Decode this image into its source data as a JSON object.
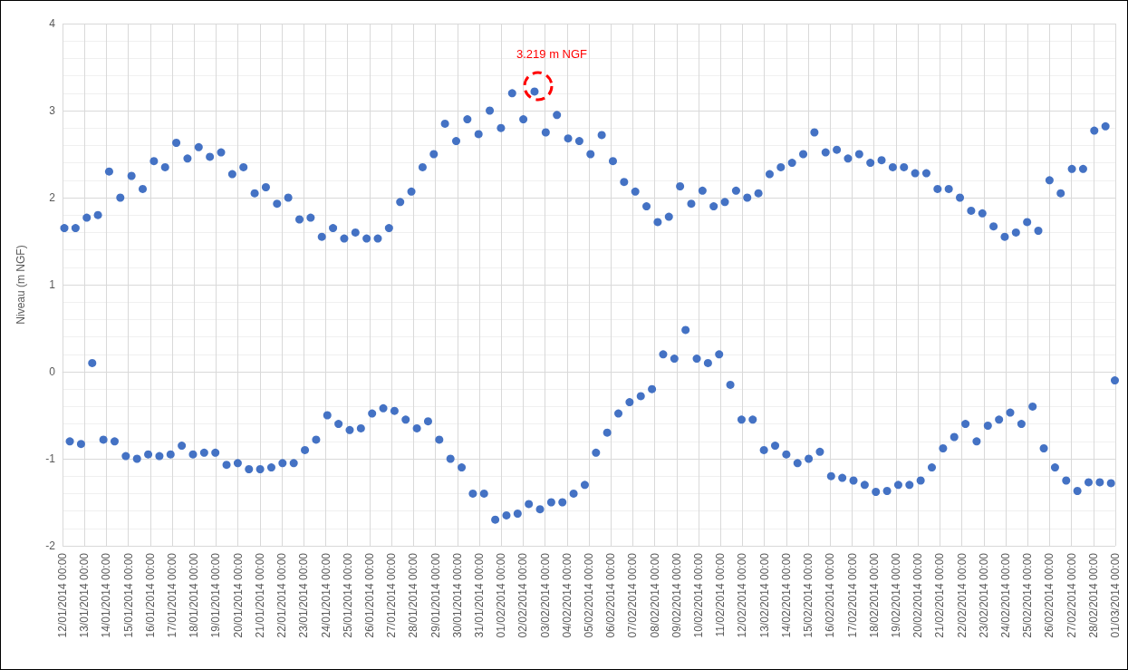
{
  "chart_data": {
    "type": "scatter",
    "ylabel": "Niveau (m NGF)",
    "annotations": [
      {
        "text": "3.219 m NGF",
        "x": "2014-02-02T12:30",
        "y": 3.219
      }
    ],
    "xlim": [
      "2014-01-12",
      "2014-03-01"
    ],
    "xticks": [
      {
        "value": "2014-01-12",
        "label": "12/01/2014 00:00"
      },
      {
        "value": "2014-01-13",
        "label": "13/01/2014 00:00"
      },
      {
        "value": "2014-01-14",
        "label": "14/01/2014 00:00"
      },
      {
        "value": "2014-01-15",
        "label": "15/01/2014 00:00"
      },
      {
        "value": "2014-01-16",
        "label": "16/01/2014 00:00"
      },
      {
        "value": "2014-01-17",
        "label": "17/01/2014 00:00"
      },
      {
        "value": "2014-01-18",
        "label": "18/01/2014 00:00"
      },
      {
        "value": "2014-01-19",
        "label": "19/01/2014 00:00"
      },
      {
        "value": "2014-01-20",
        "label": "20/01/2014 00:00"
      },
      {
        "value": "2014-01-21",
        "label": "21/01/2014 00:00"
      },
      {
        "value": "2014-01-22",
        "label": "22/01/2014 00:00"
      },
      {
        "value": "2014-01-23",
        "label": "23/01/2014 00:00"
      },
      {
        "value": "2014-01-24",
        "label": "24/01/2014 00:00"
      },
      {
        "value": "2014-01-25",
        "label": "25/01/2014 00:00"
      },
      {
        "value": "2014-01-26",
        "label": "26/01/2014 00:00"
      },
      {
        "value": "2014-01-27",
        "label": "27/01/2014 00:00"
      },
      {
        "value": "2014-01-28",
        "label": "28/01/2014 00:00"
      },
      {
        "value": "2014-01-29",
        "label": "29/01/2014 00:00"
      },
      {
        "value": "2014-01-30",
        "label": "30/01/2014 00:00"
      },
      {
        "value": "2014-01-31",
        "label": "31/01/2014 00:00"
      },
      {
        "value": "2014-02-01",
        "label": "01/02/2014 00:00"
      },
      {
        "value": "2014-02-02",
        "label": "02/02/2014 00:00"
      },
      {
        "value": "2014-02-03",
        "label": "03/02/2014 00:00"
      },
      {
        "value": "2014-02-04",
        "label": "04/02/2014 00:00"
      },
      {
        "value": "2014-02-05",
        "label": "05/02/2014 00:00"
      },
      {
        "value": "2014-02-06",
        "label": "06/02/2014 00:00"
      },
      {
        "value": "2014-02-07",
        "label": "07/02/2014 00:00"
      },
      {
        "value": "2014-02-08",
        "label": "08/02/2014 00:00"
      },
      {
        "value": "2014-02-09",
        "label": "09/02/2014 00:00"
      },
      {
        "value": "2014-02-10",
        "label": "10/02/2014 00:00"
      },
      {
        "value": "2014-02-11",
        "label": "11/02/2014 00:00"
      },
      {
        "value": "2014-02-12",
        "label": "12/02/2014 00:00"
      },
      {
        "value": "2014-02-13",
        "label": "13/02/2014 00:00"
      },
      {
        "value": "2014-02-14",
        "label": "14/02/2014 00:00"
      },
      {
        "value": "2014-02-15",
        "label": "15/02/2014 00:00"
      },
      {
        "value": "2014-02-16",
        "label": "16/02/2014 00:00"
      },
      {
        "value": "2014-02-17",
        "label": "17/02/2014 00:00"
      },
      {
        "value": "2014-02-18",
        "label": "18/02/2014 00:00"
      },
      {
        "value": "2014-02-19",
        "label": "19/02/2014 00:00"
      },
      {
        "value": "2014-02-20",
        "label": "20/02/2014 00:00"
      },
      {
        "value": "2014-02-21",
        "label": "21/02/2014 00:00"
      },
      {
        "value": "2014-02-22",
        "label": "22/02/2014 00:00"
      },
      {
        "value": "2014-02-23",
        "label": "23/02/2014 00:00"
      },
      {
        "value": "2014-02-24",
        "label": "24/02/2014 00:00"
      },
      {
        "value": "2014-02-25",
        "label": "25/02/2014 00:00"
      },
      {
        "value": "2014-02-26",
        "label": "26/02/2014 00:00"
      },
      {
        "value": "2014-02-27",
        "label": "27/02/2014 00:00"
      },
      {
        "value": "2014-02-28",
        "label": "28/02/2014 00:00"
      },
      {
        "value": "2014-03-01",
        "label": "01/03/2014 00:00"
      }
    ],
    "ylim": [
      -2,
      4
    ],
    "yticks": [
      -2,
      -1,
      0,
      1,
      2,
      3,
      4
    ],
    "grid": true,
    "marker": "circle",
    "series": [
      {
        "color": "#4472c4",
        "x": [
          "2014-01-12T02:00",
          "2014-01-12T08:00",
          "2014-01-12T14:15",
          "2014-01-12T20:15",
          "2014-01-13T02:30",
          "2014-01-13T08:30",
          "2014-01-13T14:45",
          "2014-01-13T20:45",
          "2014-01-14T03:00",
          "2014-01-14T09:00",
          "2014-01-14T15:15",
          "2014-01-14T21:15",
          "2014-01-15T03:30",
          "2014-01-15T09:30",
          "2014-01-15T15:45",
          "2014-01-15T21:45",
          "2014-01-16T04:00",
          "2014-01-16T10:00",
          "2014-01-16T16:15",
          "2014-01-16T22:15",
          "2014-01-17T04:30",
          "2014-01-17T10:30",
          "2014-01-17T16:45",
          "2014-01-17T22:45",
          "2014-01-18T05:00",
          "2014-01-18T11:00",
          "2014-01-18T17:15",
          "2014-01-18T23:15",
          "2014-01-19T05:30",
          "2014-01-19T11:30",
          "2014-01-19T17:45",
          "2014-01-19T23:45",
          "2014-01-20T06:00",
          "2014-01-20T12:00",
          "2014-01-20T18:15",
          "2014-01-21T00:15",
          "2014-01-21T06:30",
          "2014-01-21T12:30",
          "2014-01-21T18:45",
          "2014-01-22T00:45",
          "2014-01-22T07:00",
          "2014-01-22T13:00",
          "2014-01-22T19:15",
          "2014-01-23T01:15",
          "2014-01-23T07:30",
          "2014-01-23T13:30",
          "2014-01-23T19:45",
          "2014-01-24T01:45",
          "2014-01-24T08:00",
          "2014-01-24T14:00",
          "2014-01-24T20:15",
          "2014-01-25T02:15",
          "2014-01-25T08:30",
          "2014-01-25T14:30",
          "2014-01-25T20:45",
          "2014-01-26T02:45",
          "2014-01-26T09:00",
          "2014-01-26T15:00",
          "2014-01-26T21:15",
          "2014-01-27T03:15",
          "2014-01-27T09:30",
          "2014-01-27T15:30",
          "2014-01-27T21:45",
          "2014-01-28T03:45",
          "2014-01-28T10:00",
          "2014-01-28T16:00",
          "2014-01-28T22:15",
          "2014-01-29T04:15",
          "2014-01-29T10:30",
          "2014-01-29T16:30",
          "2014-01-29T22:45",
          "2014-01-30T04:45",
          "2014-01-30T11:00",
          "2014-01-30T17:00",
          "2014-01-30T23:15",
          "2014-01-31T05:15",
          "2014-01-31T11:30",
          "2014-01-31T17:30",
          "2014-01-31T23:45",
          "2014-02-01T05:45",
          "2014-02-01T12:00",
          "2014-02-01T18:00",
          "2014-02-02T00:15",
          "2014-02-02T06:15",
          "2014-02-02T12:30",
          "2014-02-02T18:30",
          "2014-02-03T00:45",
          "2014-02-03T06:45",
          "2014-02-03T13:00",
          "2014-02-03T19:00",
          "2014-02-04T01:15",
          "2014-02-04T07:15",
          "2014-02-04T13:30",
          "2014-02-04T19:30",
          "2014-02-05T01:45",
          "2014-02-05T07:45",
          "2014-02-05T14:00",
          "2014-02-05T20:00",
          "2014-02-06T02:15",
          "2014-02-06T08:15",
          "2014-02-06T14:30",
          "2014-02-06T20:30",
          "2014-02-07T02:45",
          "2014-02-07T08:45",
          "2014-02-07T15:00",
          "2014-02-07T21:00",
          "2014-02-08T03:15",
          "2014-02-08T09:15",
          "2014-02-08T15:30",
          "2014-02-08T21:30",
          "2014-02-09T03:45",
          "2014-02-09T09:45",
          "2014-02-09T16:00",
          "2014-02-09T22:00",
          "2014-02-10T04:15",
          "2014-02-10T10:15",
          "2014-02-10T16:30",
          "2014-02-10T22:30",
          "2014-02-11T04:45",
          "2014-02-11T10:45",
          "2014-02-11T17:00",
          "2014-02-11T23:00",
          "2014-02-12T05:15",
          "2014-02-12T11:15",
          "2014-02-12T17:30",
          "2014-02-12T23:30",
          "2014-02-13T05:45",
          "2014-02-13T11:45",
          "2014-02-13T18:00",
          "2014-02-14T00:00",
          "2014-02-14T06:15",
          "2014-02-14T12:15",
          "2014-02-14T18:30",
          "2014-02-15T00:30",
          "2014-02-15T06:45",
          "2014-02-15T12:45",
          "2014-02-15T19:00",
          "2014-02-16T01:00",
          "2014-02-16T07:15",
          "2014-02-16T13:15",
          "2014-02-16T19:30",
          "2014-02-17T01:30",
          "2014-02-17T07:45",
          "2014-02-17T13:45",
          "2014-02-17T20:00",
          "2014-02-18T02:00",
          "2014-02-18T08:15",
          "2014-02-18T14:15",
          "2014-02-18T20:30",
          "2014-02-19T02:30",
          "2014-02-19T08:45",
          "2014-02-19T14:45",
          "2014-02-19T21:00",
          "2014-02-20T03:00",
          "2014-02-20T09:15",
          "2014-02-20T15:15",
          "2014-02-20T21:30",
          "2014-02-21T03:30",
          "2014-02-21T09:45",
          "2014-02-21T15:45",
          "2014-02-21T22:00",
          "2014-02-22T04:00",
          "2014-02-22T10:15",
          "2014-02-22T16:15",
          "2014-02-22T22:30",
          "2014-02-23T04:30",
          "2014-02-23T10:45",
          "2014-02-23T16:45",
          "2014-02-23T23:00",
          "2014-02-24T05:00",
          "2014-02-24T11:15",
          "2014-02-24T17:15",
          "2014-02-24T23:30",
          "2014-02-25T05:30",
          "2014-02-25T11:45",
          "2014-02-25T17:45",
          "2014-02-26T00:00",
          "2014-02-26T06:00",
          "2014-02-26T12:15",
          "2014-02-26T18:15",
          "2014-02-27T00:30",
          "2014-02-27T06:30",
          "2014-02-27T12:45",
          "2014-02-27T18:45",
          "2014-02-28T01:00",
          "2014-02-28T07:00",
          "2014-02-28T13:15",
          "2014-02-28T19:15",
          "2014-02-28T23:30"
        ],
        "values": [
          1.65,
          -0.8,
          1.65,
          -0.83,
          1.77,
          0.1,
          1.8,
          -0.78,
          2.3,
          -0.8,
          2.0,
          -0.97,
          2.25,
          -1.0,
          2.1,
          -0.95,
          2.42,
          -0.97,
          2.35,
          -0.95,
          2.63,
          -0.85,
          2.45,
          -0.95,
          2.58,
          -0.93,
          2.47,
          -0.93,
          2.52,
          -1.07,
          2.27,
          -1.05,
          2.35,
          -1.12,
          2.05,
          -1.12,
          2.12,
          -1.1,
          1.93,
          -1.05,
          2.0,
          -1.05,
          1.75,
          -0.9,
          1.77,
          -0.78,
          1.55,
          -0.5,
          1.65,
          -0.6,
          1.53,
          -0.67,
          1.6,
          -0.65,
          1.53,
          -0.48,
          1.53,
          -0.42,
          1.65,
          -0.45,
          1.95,
          -0.55,
          2.07,
          -0.65,
          2.35,
          -0.57,
          2.5,
          -0.78,
          2.85,
          -1.0,
          2.65,
          -1.1,
          2.9,
          -1.4,
          2.73,
          -1.4,
          3.0,
          -1.7,
          2.8,
          -1.65,
          3.2,
          -1.63,
          2.9,
          -1.52,
          3.219,
          -1.58,
          2.75,
          -1.5,
          2.95,
          -1.5,
          2.68,
          -1.4,
          2.65,
          -1.3,
          2.5,
          -0.93,
          2.72,
          -0.7,
          2.42,
          -0.48,
          2.18,
          -0.35,
          2.07,
          -0.28,
          1.9,
          -0.2,
          1.72,
          0.2,
          1.78,
          0.15,
          2.13,
          0.48,
          1.93,
          0.15,
          2.08,
          0.1,
          1.9,
          0.2,
          1.95,
          -0.15,
          2.08,
          -0.55,
          2.0,
          -0.55,
          2.05,
          -0.9,
          2.27,
          -0.85,
          2.35,
          -0.95,
          2.4,
          -1.05,
          2.5,
          -1.0,
          2.75,
          -0.92,
          2.52,
          -1.2,
          2.55,
          -1.22,
          2.45,
          -1.25,
          2.5,
          -1.3,
          2.4,
          -1.38,
          2.43,
          -1.37,
          2.35,
          -1.3,
          2.35,
          -1.3,
          2.28,
          -1.25,
          2.28,
          -1.1,
          2.1,
          -0.88,
          2.1,
          -0.75,
          2.0,
          -0.6,
          1.85,
          -0.8,
          1.82,
          -0.62,
          1.67,
          -0.55,
          1.55,
          -0.47,
          1.6,
          -0.6,
          1.72,
          -0.4,
          1.62,
          -0.88,
          2.2,
          -1.1,
          2.05,
          -1.25,
          2.33,
          -1.37,
          2.33,
          -1.27,
          2.77,
          -1.27,
          2.82,
          -1.28,
          -0.1
        ]
      }
    ]
  }
}
